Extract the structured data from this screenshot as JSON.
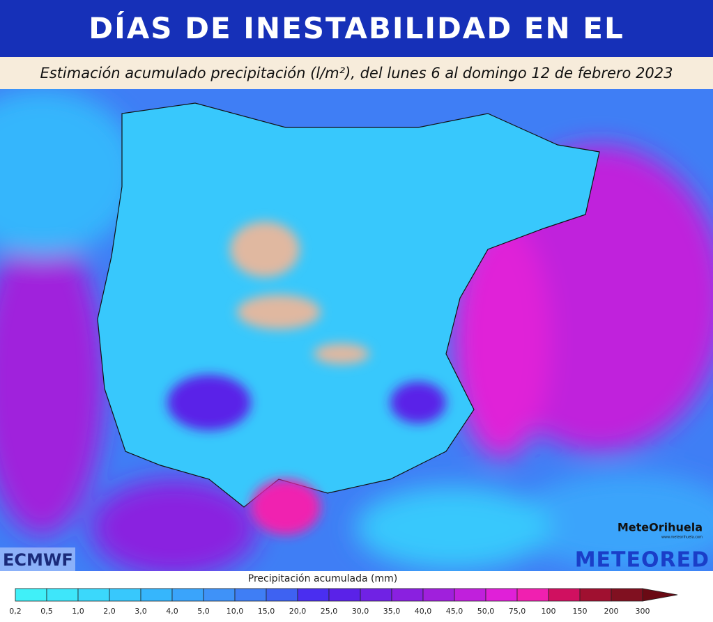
{
  "header": {
    "title": "DÍAS DE INESTABILIDAD EN EL MEDITERRÁNEO"
  },
  "subtitle": "Estimación acumulado precipitación (l/m²), del lunes 6 al domingo 12 de febrero 2023",
  "logos": {
    "source": "ECMWF",
    "brand": "METEORED",
    "partner": "MeteOrihuela",
    "partner_url": "www.meteorihuela.com"
  },
  "legend": {
    "title": "Precipitación acumulada (mm)",
    "labels": [
      "0,2",
      "0,5",
      "1,0",
      "2,0",
      "3,0",
      "4,0",
      "5,0",
      "10,0",
      "15,0",
      "20,0",
      "25,0",
      "30,0",
      "35,0",
      "40,0",
      "45,0",
      "50,0",
      "75,0",
      "100",
      "150",
      "200",
      "300"
    ],
    "colors": [
      "#40f0f8",
      "#3ee6fa",
      "#3bd8fb",
      "#38c8fc",
      "#36b6fc",
      "#3aa4fb",
      "#3f92f8",
      "#3f7ef5",
      "#3e62f2",
      "#4a2ef0",
      "#5a22e8",
      "#7022e4",
      "#8a20e0",
      "#a020dc",
      "#c020dc",
      "#e020d8",
      "#f020b0",
      "#d01060",
      "#a01030",
      "#801020"
    ],
    "arrow_color": "#6a0a14"
  }
}
